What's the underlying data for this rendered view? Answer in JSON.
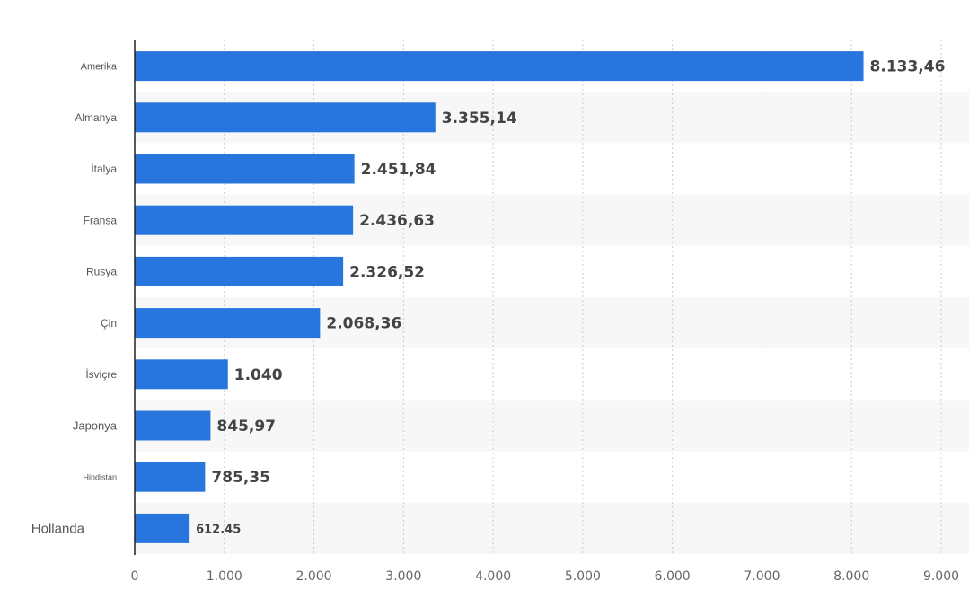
{
  "chart_data": {
    "type": "bar",
    "orientation": "horizontal",
    "categories": [
      "Amerika",
      "Almanya",
      "İtalya",
      "Fransa",
      "Rusya",
      "Çin",
      "İsviçre",
      "Japonya",
      "Hindistan",
      "Hollanda"
    ],
    "values": [
      8133.46,
      3355.14,
      2451.84,
      2436.63,
      2326.52,
      2068.36,
      1040,
      845.97,
      785.35,
      612.45
    ],
    "value_labels": [
      "8.133,46",
      "3.355,14",
      "2.451,84",
      "2.436,63",
      "2.326,52",
      "2.068,36",
      "1.040",
      "845,97",
      "785,35",
      "612.45"
    ],
    "x_ticks": [
      0,
      1000,
      2000,
      3000,
      4000,
      5000,
      6000,
      7000,
      8000,
      9000
    ],
    "x_tick_labels": [
      "0",
      "1.000",
      "2.000",
      "3.000",
      "4.000",
      "5.000",
      "6.000",
      "7.000",
      "8.000",
      "9.000"
    ],
    "xlim": [
      0,
      9000
    ],
    "title": "",
    "xlabel": "",
    "ylabel": "",
    "grid": true,
    "bar_color": "#2876dd",
    "stripe_color": "#f7f7f7"
  }
}
